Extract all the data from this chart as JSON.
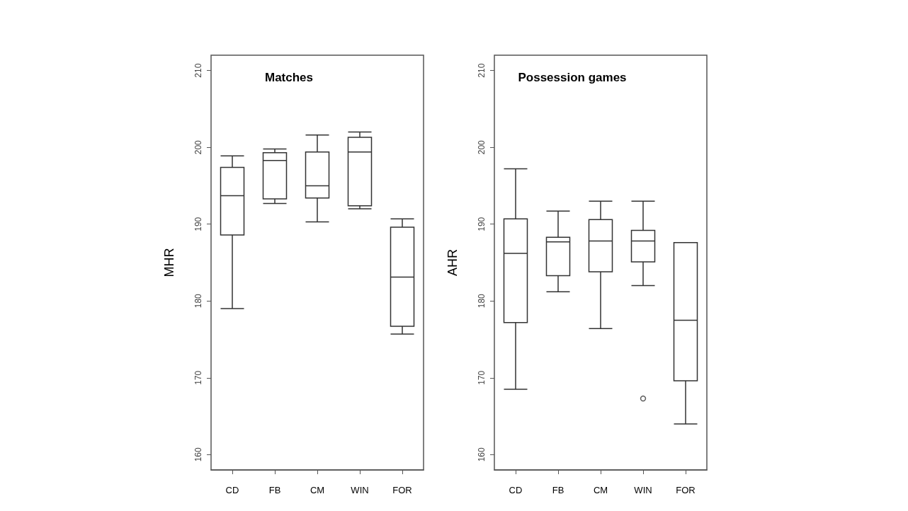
{
  "chart_data": [
    {
      "type": "box",
      "title": "Matches",
      "ylabel": "MHR",
      "categories": [
        "CD",
        "FB",
        "CM",
        "WIN",
        "FOR"
      ],
      "ylim": [
        158,
        212
      ],
      "yticks": [
        160,
        170,
        180,
        190,
        200,
        210
      ],
      "grid": false,
      "boxes": [
        {
          "low": 179.0,
          "q1": 188.6,
          "median": 193.7,
          "q3": 197.4,
          "high": 198.9
        },
        {
          "low": 192.7,
          "q1": 193.3,
          "median": 198.3,
          "q3": 199.3,
          "high": 199.8
        },
        {
          "low": 190.3,
          "q1": 193.4,
          "median": 195.0,
          "q3": 199.4,
          "high": 201.6
        },
        {
          "low": 192.0,
          "q1": 192.4,
          "median": 199.4,
          "q3": 201.3,
          "high": 202.0
        },
        {
          "low": 175.7,
          "q1": 176.7,
          "median": 183.1,
          "q3": 189.6,
          "high": 190.7
        }
      ]
    },
    {
      "type": "box",
      "title": "Possession games",
      "ylabel": "AHR",
      "categories": [
        "CD",
        "FB",
        "CM",
        "WIN",
        "FOR"
      ],
      "ylim": [
        158,
        212
      ],
      "yticks": [
        160,
        170,
        180,
        190,
        200,
        210
      ],
      "grid": false,
      "boxes": [
        {
          "low": 168.5,
          "q1": 177.2,
          "median": 186.2,
          "q3": 190.7,
          "high": 197.2
        },
        {
          "low": 181.2,
          "q1": 183.3,
          "median": 187.7,
          "q3": 188.3,
          "high": 191.7
        },
        {
          "low": 176.4,
          "q1": 183.8,
          "median": 187.8,
          "q3": 190.6,
          "high": 193.0
        },
        {
          "low": 182.0,
          "q1": 185.1,
          "median": 187.8,
          "q3": 189.2,
          "high": 193.0,
          "outliers": [
            167.3
          ]
        },
        {
          "low": 164.0,
          "q1": 169.6,
          "median": 177.5,
          "q3": 187.6,
          "high": 187.6
        }
      ]
    }
  ]
}
